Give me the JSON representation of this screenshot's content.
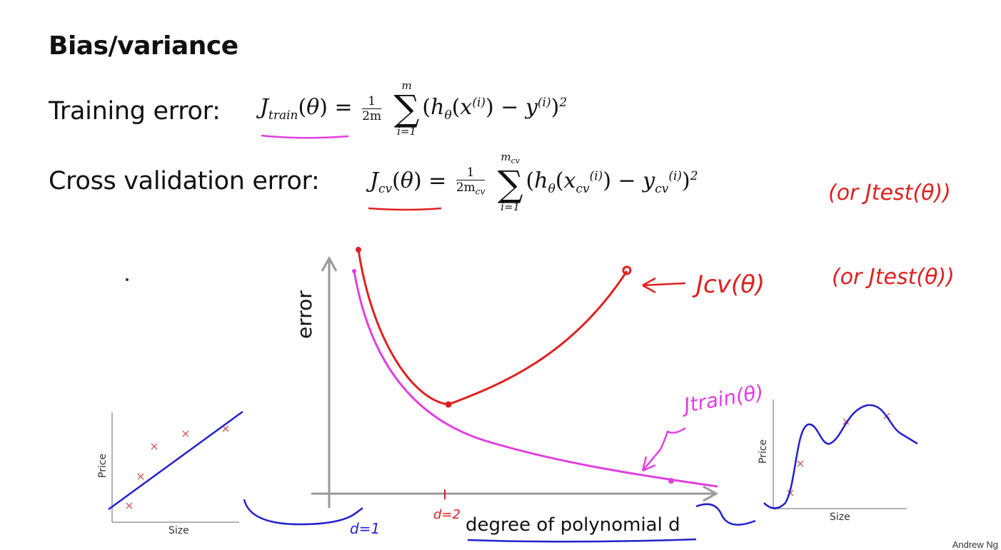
{
  "slide": {
    "title": "Bias/variance",
    "training_label": "Training error:",
    "cv_label": "Cross validation error:",
    "author": "Andrew Ng"
  },
  "formulas": {
    "train": {
      "lhs": "J",
      "lhs_sub": "train",
      "sum_top": "m",
      "sum_bottom": "i=1",
      "frac_top": "1",
      "frac_bottom": "2m"
    },
    "cv": {
      "lhs": "J",
      "lhs_sub": "cv",
      "sum_top": "m",
      "sum_top_sub": "cv",
      "sum_bottom": "i=1",
      "frac_top": "1",
      "frac_bottom": "2m",
      "frac_bottom_sub": "cv"
    }
  },
  "annotations": {
    "or_test_top": "(or Jtest(θ))",
    "jcv_label": "Jcv(θ)",
    "or_test_mid": "(or Jtest(θ))",
    "jtrain_label": "Jtrain(θ)",
    "d1": "d=1",
    "d2": "d=2"
  },
  "main_plot": {
    "ylabel": "error",
    "xlabel": "degree of polynomial d"
  },
  "left_plot": {
    "ylabel": "Price",
    "xlabel": "Size"
  },
  "right_plot": {
    "ylabel": "Price",
    "xlabel": "Size"
  },
  "colors": {
    "cv": "#e02020",
    "train": "#e040e0",
    "fit": "#2222cc",
    "marks": "#d06060",
    "axis": "#999999"
  }
}
